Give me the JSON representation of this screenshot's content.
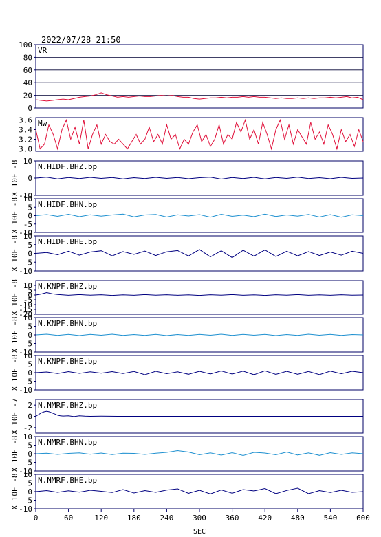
{
  "header": {
    "timestamp": "2022/07/28 21:50"
  },
  "x_axis": {
    "label": "SEC",
    "min": 0,
    "max": 600,
    "ticks": [
      0,
      60,
      120,
      180,
      240,
      300,
      360,
      420,
      480,
      540,
      600
    ]
  },
  "colors": {
    "frame": "#000066",
    "red": "#e0103a",
    "dark_blue": "#000080",
    "light_blue": "#1e90d0",
    "text": "#000000"
  },
  "chart_data": [
    {
      "type": "line",
      "name": "VR",
      "color": "red",
      "ylim": [
        0,
        100
      ],
      "yticks": [
        0,
        20,
        40,
        60,
        80,
        100
      ],
      "grid": true,
      "x": [
        0,
        10,
        20,
        30,
        40,
        50,
        60,
        70,
        80,
        90,
        100,
        110,
        120,
        130,
        140,
        150,
        160,
        170,
        180,
        190,
        200,
        210,
        220,
        230,
        240,
        250,
        260,
        270,
        280,
        290,
        300,
        310,
        320,
        330,
        340,
        350,
        360,
        370,
        380,
        390,
        400,
        410,
        420,
        430,
        440,
        450,
        460,
        470,
        480,
        490,
        500,
        510,
        520,
        530,
        540,
        550,
        560,
        570,
        580,
        590,
        600
      ],
      "values": [
        13,
        12,
        11,
        12,
        13,
        14,
        13,
        15,
        17,
        18,
        19,
        21,
        24,
        21,
        19,
        17,
        18,
        17,
        18,
        19,
        18,
        18,
        19,
        20,
        19,
        20,
        18,
        17,
        17,
        15,
        14,
        15,
        16,
        16,
        17,
        16,
        17,
        17,
        18,
        17,
        18,
        17,
        17,
        16,
        15,
        16,
        15,
        15,
        16,
        15,
        16,
        15,
        16,
        16,
        17,
        16,
        17,
        18,
        16,
        17,
        13
      ]
    },
    {
      "type": "line",
      "name": "Mw",
      "color": "red",
      "ylim": [
        2.95,
        3.65
      ],
      "yticks": [
        "3.0",
        "3.2",
        "3.4",
        "3.6"
      ],
      "grid": false,
      "x": [
        0,
        8,
        16,
        24,
        32,
        40,
        48,
        56,
        64,
        72,
        80,
        88,
        96,
        104,
        112,
        120,
        128,
        136,
        144,
        152,
        160,
        168,
        176,
        184,
        192,
        200,
        208,
        216,
        224,
        232,
        240,
        248,
        256,
        264,
        272,
        280,
        288,
        296,
        304,
        312,
        320,
        328,
        336,
        344,
        352,
        360,
        368,
        376,
        384,
        392,
        400,
        408,
        416,
        424,
        432,
        440,
        448,
        456,
        464,
        472,
        480,
        488,
        496,
        504,
        512,
        520,
        528,
        536,
        544,
        552,
        560,
        568,
        576,
        584,
        592,
        600
      ],
      "values": [
        3.4,
        3.0,
        3.1,
        3.5,
        3.3,
        3.0,
        3.4,
        3.6,
        3.2,
        3.45,
        3.1,
        3.6,
        3.0,
        3.3,
        3.5,
        3.1,
        3.3,
        3.15,
        3.1,
        3.2,
        3.1,
        3.0,
        3.15,
        3.3,
        3.1,
        3.2,
        3.45,
        3.15,
        3.3,
        3.1,
        3.5,
        3.2,
        3.3,
        3.0,
        3.2,
        3.1,
        3.35,
        3.5,
        3.15,
        3.3,
        3.05,
        3.2,
        3.5,
        3.1,
        3.3,
        3.2,
        3.55,
        3.35,
        3.6,
        3.2,
        3.4,
        3.1,
        3.55,
        3.3,
        3.0,
        3.4,
        3.6,
        3.2,
        3.5,
        3.1,
        3.4,
        3.25,
        3.1,
        3.55,
        3.2,
        3.35,
        3.1,
        3.5,
        3.3,
        3.0,
        3.4,
        3.15,
        3.3,
        3.05,
        3.4,
        3.15
      ]
    },
    {
      "type": "line",
      "name": "N.HIDF.BHZ.bp",
      "color": "dark_blue",
      "scale_label": "X 10E -8",
      "ylim": [
        -10,
        10
      ],
      "yticks": [
        -10,
        0,
        10
      ],
      "x": [
        0,
        20,
        40,
        60,
        80,
        100,
        120,
        140,
        160,
        180,
        200,
        220,
        240,
        260,
        280,
        300,
        320,
        340,
        360,
        380,
        400,
        420,
        440,
        460,
        480,
        500,
        520,
        540,
        560,
        580,
        600
      ],
      "values": [
        0,
        0.5,
        -0.5,
        0.3,
        -0.3,
        0.4,
        -0.2,
        0.3,
        -0.5,
        0.2,
        -0.3,
        0.4,
        -0.2,
        0.3,
        -0.4,
        0.2,
        0.5,
        -0.6,
        0.3,
        -0.3,
        0.4,
        -0.5,
        0.3,
        -0.2,
        0.5,
        -0.3,
        0.2,
        -0.4,
        0.4,
        -0.2,
        0
      ]
    },
    {
      "type": "line",
      "name": "N.HIDF.BHN.bp",
      "color": "light_blue",
      "scale_label": "X 10E -8",
      "ylim": [
        -10,
        10
      ],
      "yticks": [
        -10,
        -5,
        0,
        5,
        10
      ],
      "x": [
        0,
        20,
        40,
        60,
        80,
        100,
        120,
        140,
        160,
        180,
        200,
        220,
        240,
        260,
        280,
        300,
        320,
        340,
        360,
        380,
        400,
        420,
        440,
        460,
        480,
        500,
        520,
        540,
        560,
        580,
        600
      ],
      "values": [
        0,
        0.6,
        -0.4,
        0.8,
        -0.6,
        0.5,
        -0.3,
        0.4,
        0.9,
        -0.7,
        0.4,
        0.7,
        -0.8,
        0.5,
        -0.2,
        0.6,
        -0.9,
        0.8,
        -0.4,
        0.3,
        -0.6,
        0.9,
        -0.5,
        0.4,
        -0.3,
        0.7,
        -0.8,
        0.6,
        -0.9,
        0.5,
        0
      ]
    },
    {
      "type": "line",
      "name": "N.HIDF.BHE.bp",
      "color": "dark_blue",
      "scale_label": "X 10E -8",
      "ylim": [
        -10,
        10
      ],
      "yticks": [
        -10,
        -5,
        0,
        5,
        10
      ],
      "x": [
        0,
        20,
        40,
        60,
        80,
        100,
        120,
        140,
        160,
        180,
        200,
        220,
        240,
        260,
        280,
        300,
        320,
        340,
        360,
        380,
        400,
        420,
        440,
        460,
        480,
        500,
        520,
        540,
        560,
        580,
        600
      ],
      "values": [
        0,
        0.5,
        -0.8,
        1.2,
        -1.0,
        0.8,
        1.5,
        -1.4,
        1.0,
        -0.6,
        1.3,
        -1.2,
        0.9,
        1.6,
        -1.5,
        2.2,
        -2.0,
        1.5,
        -2.4,
        1.8,
        -1.6,
        2.0,
        -1.8,
        1.2,
        -1.4,
        1.0,
        -1.2,
        0.8,
        -1.0,
        1.2,
        0
      ]
    },
    {
      "type": "line",
      "name": "N.KNPF.BHZ.bp",
      "color": "dark_blue",
      "scale_label": "X 10E -8",
      "ylim": [
        -20,
        15
      ],
      "yticks": [
        -20,
        -15,
        -10,
        -5,
        0,
        5,
        10
      ],
      "x": [
        0,
        10,
        20,
        30,
        40,
        60,
        80,
        100,
        120,
        140,
        160,
        180,
        200,
        220,
        240,
        260,
        280,
        300,
        320,
        340,
        360,
        380,
        400,
        420,
        440,
        460,
        480,
        500,
        520,
        540,
        560,
        580,
        600
      ],
      "values": [
        0,
        1.0,
        2.5,
        1.2,
        0.5,
        -0.3,
        0.4,
        -0.2,
        0.3,
        -0.4,
        0.2,
        -0.3,
        0.4,
        -0.2,
        0.3,
        -0.3,
        0.2,
        -0.4,
        0.3,
        -0.2,
        0.4,
        -0.3,
        0.2,
        -0.4,
        0.3,
        -0.2,
        0.4,
        -0.3,
        0.2,
        -0.3,
        0.3,
        -0.2,
        0
      ]
    },
    {
      "type": "line",
      "name": "N.KNPF.BHN.bp",
      "color": "light_blue",
      "scale_label": "X 10E -8",
      "ylim": [
        -10,
        10
      ],
      "yticks": [
        -10,
        -5,
        0,
        5,
        10
      ],
      "x": [
        0,
        20,
        40,
        60,
        80,
        100,
        120,
        140,
        160,
        180,
        200,
        220,
        240,
        260,
        280,
        300,
        320,
        340,
        360,
        380,
        400,
        420,
        440,
        460,
        480,
        500,
        520,
        540,
        560,
        580,
        600
      ],
      "values": [
        0,
        0.4,
        -0.3,
        0.3,
        -0.4,
        0.3,
        -0.2,
        0.4,
        -0.3,
        0.2,
        -0.3,
        0.3,
        -0.4,
        0.2,
        -0.3,
        0.3,
        -0.2,
        0.4,
        -0.3,
        0.3,
        -0.2,
        0.3,
        -0.4,
        0.2,
        -0.3,
        0.4,
        -0.2,
        0.3,
        -0.3,
        0.2,
        0
      ]
    },
    {
      "type": "line",
      "name": "N.KNPF.BHE.bp",
      "color": "dark_blue",
      "scale_label": "X 10E -8",
      "ylim": [
        -10,
        10
      ],
      "yticks": [
        -10,
        -5,
        0,
        5,
        10
      ],
      "x": [
        0,
        20,
        40,
        60,
        80,
        100,
        120,
        140,
        160,
        180,
        200,
        220,
        240,
        260,
        280,
        300,
        320,
        340,
        360,
        380,
        400,
        420,
        440,
        460,
        480,
        500,
        520,
        540,
        560,
        580,
        600
      ],
      "values": [
        0,
        0.4,
        -0.5,
        0.6,
        -0.4,
        0.5,
        -0.3,
        0.6,
        -0.5,
        0.7,
        -1.2,
        0.8,
        -0.6,
        0.5,
        -0.9,
        0.8,
        -0.7,
        1.0,
        -0.8,
        0.9,
        -1.2,
        1.1,
        -1.0,
        0.8,
        -0.9,
        0.7,
        -1.1,
        0.9,
        -0.6,
        0.8,
        0
      ]
    },
    {
      "type": "line",
      "name": "N.NMRF.BHZ.bp",
      "color": "dark_blue",
      "scale_label": "X 10E -7",
      "ylim": [
        -3,
        3
      ],
      "yticks": [
        -2,
        0,
        2
      ],
      "x": [
        0,
        5,
        10,
        15,
        20,
        25,
        30,
        35,
        40,
        45,
        50,
        60,
        70,
        80,
        90,
        100,
        120,
        150,
        200,
        300,
        400,
        500,
        600
      ],
      "values": [
        0,
        0.3,
        0.6,
        0.8,
        0.9,
        0.8,
        0.6,
        0.4,
        0.2,
        0.1,
        0.05,
        0.1,
        -0.05,
        0.08,
        0.03,
        0,
        0.02,
        0,
        0,
        0,
        0,
        0,
        0
      ]
    },
    {
      "type": "line",
      "name": "N.NMRF.BHN.bp",
      "color": "light_blue",
      "scale_label": "X 10E -8",
      "ylim": [
        -10,
        10
      ],
      "yticks": [
        -10,
        -5,
        0,
        5,
        10
      ],
      "x": [
        0,
        20,
        40,
        60,
        80,
        100,
        120,
        140,
        160,
        180,
        200,
        220,
        240,
        260,
        280,
        300,
        320,
        340,
        360,
        380,
        400,
        420,
        440,
        460,
        480,
        500,
        520,
        540,
        560,
        580,
        600
      ],
      "values": [
        0,
        0.3,
        -0.4,
        0.2,
        0.5,
        -0.3,
        0.4,
        -0.5,
        0.3,
        0.2,
        -0.4,
        0.3,
        0.8,
        1.8,
        1.0,
        -0.6,
        0.5,
        -0.8,
        0.6,
        -1.0,
        0.8,
        0.4,
        -0.6,
        1.0,
        -0.7,
        0.5,
        -0.9,
        0.6,
        -0.4,
        0.5,
        0
      ]
    },
    {
      "type": "line",
      "name": "N.NMRF.BHE.bp",
      "color": "dark_blue",
      "scale_label": "X 10E -8",
      "ylim": [
        -10,
        10
      ],
      "yticks": [
        -10,
        -5,
        0,
        5,
        10
      ],
      "x": [
        0,
        20,
        40,
        60,
        80,
        100,
        120,
        140,
        160,
        180,
        200,
        220,
        240,
        260,
        280,
        300,
        320,
        340,
        360,
        380,
        400,
        420,
        440,
        460,
        480,
        500,
        520,
        540,
        560,
        580,
        600
      ],
      "values": [
        0,
        0.6,
        -0.4,
        0.5,
        -0.3,
        0.8,
        0.2,
        -0.5,
        1.2,
        -0.8,
        0.6,
        -0.4,
        0.9,
        1.6,
        -1.0,
        0.8,
        -1.3,
        1.0,
        -0.9,
        1.2,
        0.4,
        1.8,
        -1.2,
        0.7,
        2.0,
        -1.2,
        0.6,
        -0.5,
        0.8,
        -0.4,
        0
      ]
    }
  ]
}
